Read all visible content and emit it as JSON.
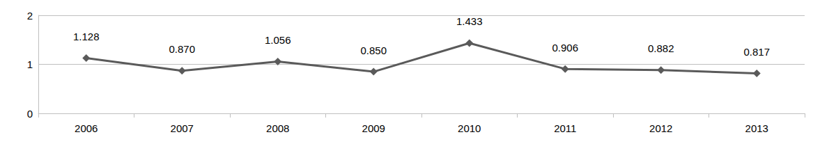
{
  "chart_data": {
    "type": "line",
    "categories": [
      "2006",
      "2007",
      "2008",
      "2009",
      "2010",
      "2011",
      "2012",
      "2013"
    ],
    "values": [
      1.128,
      0.87,
      1.056,
      0.85,
      1.433,
      0.906,
      0.882,
      0.817
    ],
    "value_labels": [
      "1.128",
      "0.870",
      "1.056",
      "0.850",
      "1.433",
      "0.906",
      "0.882",
      "0.817"
    ],
    "color": "#5a5a5a",
    "marker": "diamond",
    "line_style": "solid",
    "ylim": [
      0,
      2
    ],
    "yticks": [
      0,
      1,
      2
    ],
    "grid": true,
    "data_labels": true
  }
}
